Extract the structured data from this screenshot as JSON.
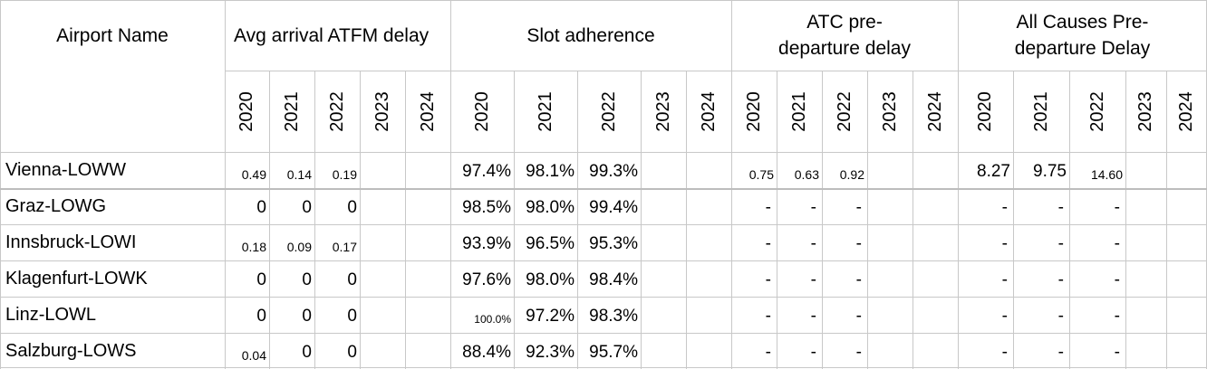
{
  "headers": {
    "airport_name": "Airport Name",
    "groups": [
      "Avg arrival ATFM delay",
      "Slot adherence",
      "ATC pre-departure delay",
      "All Causes Pre-departure Delay"
    ]
  },
  "years": [
    "2020",
    "2021",
    "2022",
    "2023",
    "2024"
  ],
  "rows": [
    {
      "name": "Vienna-LOWW",
      "values": [
        "0.49",
        "0.14",
        "0.19",
        "",
        "",
        "97.4%",
        "98.1%",
        "99.3%",
        "",
        "",
        "0.75",
        "0.63",
        "0.92",
        "",
        "",
        "8.27",
        "9.75",
        "14.60",
        "",
        ""
      ]
    },
    {
      "name": "Graz-LOWG",
      "values": [
        "0",
        "0",
        "0",
        "",
        "",
        "98.5%",
        "98.0%",
        "99.4%",
        "",
        "",
        "-",
        "-",
        "-",
        "",
        "",
        "-",
        "-",
        "-",
        "",
        ""
      ]
    },
    {
      "name": "Innsbruck-LOWI",
      "values": [
        "0.18",
        "0.09",
        "0.17",
        "",
        "",
        "93.9%",
        "96.5%",
        "95.3%",
        "",
        "",
        "-",
        "-",
        "-",
        "",
        "",
        "-",
        "-",
        "-",
        "",
        ""
      ]
    },
    {
      "name": "Klagenfurt-LOWK",
      "values": [
        "0",
        "0",
        "0",
        "",
        "",
        "97.6%",
        "98.0%",
        "98.4%",
        "",
        "",
        "-",
        "-",
        "-",
        "",
        "",
        "-",
        "-",
        "-",
        "",
        ""
      ]
    },
    {
      "name": "Linz-LOWL",
      "values": [
        "0",
        "0",
        "0",
        "",
        "",
        "100.0%",
        "97.2%",
        "98.3%",
        "",
        "",
        "-",
        "-",
        "-",
        "",
        "",
        "-",
        "-",
        "-",
        "",
        ""
      ]
    },
    {
      "name": "Salzburg-LOWS",
      "values": [
        "0.04",
        "0",
        "0",
        "",
        "",
        "88.4%",
        "92.3%",
        "95.7%",
        "",
        "",
        "-",
        "-",
        "-",
        "",
        "",
        "-",
        "-",
        "-",
        "",
        ""
      ]
    }
  ]
}
